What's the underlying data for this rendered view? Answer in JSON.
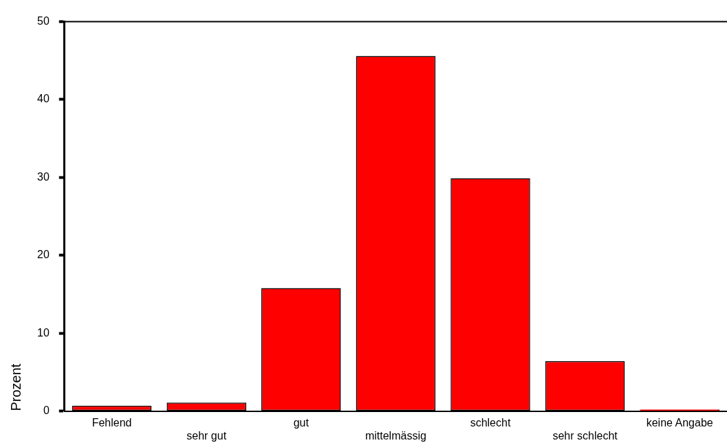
{
  "chart_data": {
    "type": "bar",
    "ylabel": "Prozent",
    "categories": [
      "Fehlend",
      "sehr gut",
      "gut",
      "mittelmässig",
      "schlecht",
      "sehr schlecht",
      "keine Angabe"
    ],
    "values": [
      0.7,
      1.1,
      15.8,
      45.6,
      29.9,
      6.4,
      0.2
    ],
    "color": "#ff0000",
    "ylim": [
      0,
      50
    ],
    "yticks": [
      0,
      10,
      20,
      30,
      40,
      50
    ],
    "grid": false,
    "legend": false
  }
}
